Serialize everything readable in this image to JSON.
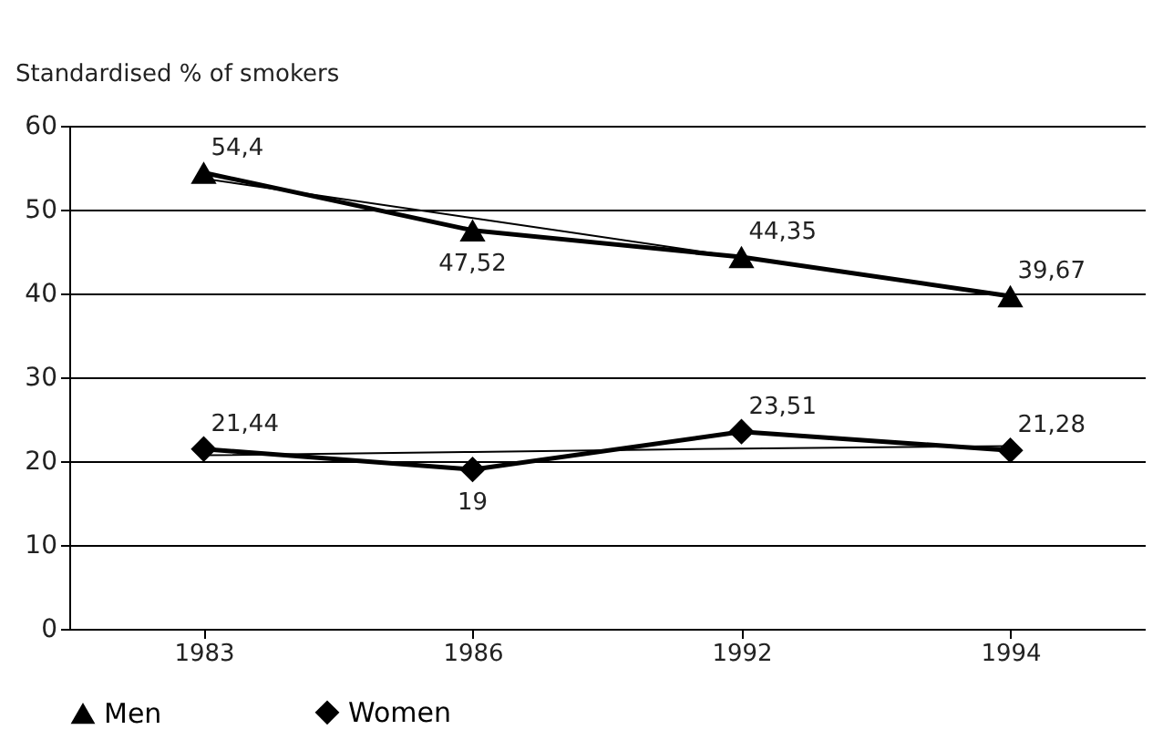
{
  "chart_data": {
    "type": "line",
    "ylabel": "Standardised % of smokers",
    "categories": [
      "1983",
      "1986",
      "1992",
      "1994"
    ],
    "ylim": [
      0,
      60
    ],
    "yticks": [
      0,
      10,
      20,
      30,
      40,
      50,
      60
    ],
    "grid": "y",
    "legend": "bottom",
    "series": [
      {
        "name": "Men",
        "color": "#000000",
        "marker": "triangle",
        "values": [
          54.4,
          47.52,
          44.35,
          39.67
        ],
        "value_labels": [
          "54,4",
          "47,52",
          "44,35",
          "39,67"
        ]
      },
      {
        "name": "Women",
        "color": "#000000",
        "marker": "diamond",
        "values": [
          21.44,
          19,
          23.51,
          21.28
        ],
        "value_labels": [
          "21,44",
          "19",
          "23,51",
          "21,28"
        ]
      },
      {
        "type": "line",
        "color": "#000000",
        "marker": "none",
        "values": [
          53.7,
          49,
          44.3,
          39.6
        ]
      },
      {
        "type": "line",
        "color": "#000000",
        "marker": "none",
        "values": [
          20.7,
          21.1,
          21.5,
          21.8
        ]
      }
    ]
  }
}
